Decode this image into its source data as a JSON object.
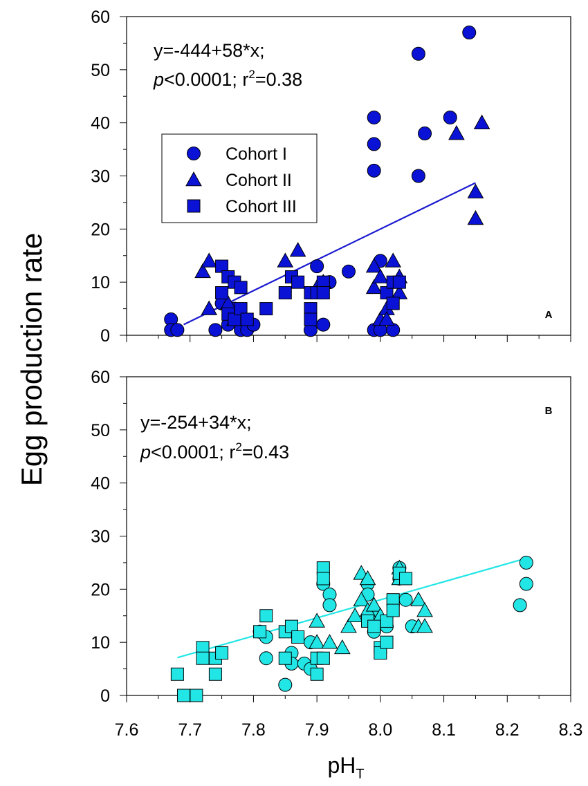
{
  "figure": {
    "ylabel": "Egg production rate",
    "xlabel_main": "pH",
    "xlabel_sub": "T",
    "colors": {
      "panel_a": "#0a12d6",
      "panel_a_line": "#1a1ad0",
      "panel_b": "#22e6e6",
      "panel_b_line": "#22e6e6",
      "stroke": "#000000"
    }
  },
  "chart_data": [
    {
      "type": "scatter",
      "panel": "A",
      "xlim": [
        7.6,
        8.3
      ],
      "ylim": [
        0,
        60
      ],
      "xticks": [
        "7.6",
        "7.7",
        "7.8",
        "7.9",
        "8.0",
        "8.1",
        "8.2",
        "8.3"
      ],
      "yticks": [
        "0",
        "10",
        "20",
        "30",
        "40",
        "50",
        "60"
      ],
      "equation": "y=-444+58*x;",
      "stats_p": "p",
      "stats_p_rest": "<0.0001; r",
      "stats_r_sup": "2",
      "stats_r_rest": "=0.38",
      "legend": {
        "placement": "upper-left",
        "entries": [
          "Cohort I",
          "Cohort II",
          "Cohort III"
        ]
      },
      "regression": {
        "intercept": -444,
        "slope": 58,
        "x_range": [
          7.69,
          8.15
        ]
      },
      "series": [
        {
          "name": "Cohort I",
          "marker": "circle",
          "points": [
            [
              7.67,
              3
            ],
            [
              7.67,
              1
            ],
            [
              7.68,
              1
            ],
            [
              7.74,
              1
            ],
            [
              7.75,
              6
            ],
            [
              7.76,
              2
            ],
            [
              7.77,
              5
            ],
            [
              7.78,
              1
            ],
            [
              7.79,
              1
            ],
            [
              7.8,
              2
            ],
            [
              7.89,
              1
            ],
            [
              7.9,
              13
            ],
            [
              7.91,
              2
            ],
            [
              7.92,
              10
            ],
            [
              7.95,
              12
            ],
            [
              7.99,
              41
            ],
            [
              7.99,
              36
            ],
            [
              7.99,
              31
            ],
            [
              7.99,
              1
            ],
            [
              8.0,
              14
            ],
            [
              8.0,
              1
            ],
            [
              8.02,
              1
            ],
            [
              8.06,
              53
            ],
            [
              8.06,
              30
            ],
            [
              8.07,
              38
            ],
            [
              8.11,
              41
            ],
            [
              8.14,
              57
            ]
          ]
        },
        {
          "name": "Cohort II",
          "marker": "triangle",
          "points": [
            [
              7.72,
              12
            ],
            [
              7.73,
              14
            ],
            [
              7.73,
              5
            ],
            [
              7.76,
              6
            ],
            [
              7.77,
              3
            ],
            [
              7.85,
              14
            ],
            [
              7.87,
              16
            ],
            [
              7.9,
              9
            ],
            [
              7.91,
              10
            ],
            [
              7.99,
              13
            ],
            [
              7.99,
              9
            ],
            [
              8.0,
              11
            ],
            [
              8.0,
              3
            ],
            [
              8.01,
              5
            ],
            [
              8.01,
              3
            ],
            [
              8.02,
              14
            ],
            [
              8.03,
              11
            ],
            [
              8.03,
              8
            ],
            [
              8.12,
              38
            ],
            [
              8.15,
              27
            ],
            [
              8.15,
              22
            ],
            [
              8.16,
              40
            ]
          ]
        },
        {
          "name": "Cohort III",
          "marker": "square",
          "points": [
            [
              7.75,
              13
            ],
            [
              7.75,
              8
            ],
            [
              7.76,
              11
            ],
            [
              7.76,
              4
            ],
            [
              7.77,
              10
            ],
            [
              7.77,
              3
            ],
            [
              7.78,
              9
            ],
            [
              7.78,
              5
            ],
            [
              7.79,
              3
            ],
            [
              7.82,
              5
            ],
            [
              7.85,
              8
            ],
            [
              7.86,
              11
            ],
            [
              7.87,
              10
            ],
            [
              7.89,
              8
            ],
            [
              7.89,
              5
            ],
            [
              7.89,
              3
            ],
            [
              7.9,
              8
            ],
            [
              7.91,
              10
            ],
            [
              7.91,
              8
            ],
            [
              8.01,
              8
            ],
            [
              8.02,
              10
            ],
            [
              8.02,
              6
            ],
            [
              8.03,
              10
            ]
          ]
        }
      ]
    },
    {
      "type": "scatter",
      "panel": "B",
      "xlim": [
        7.6,
        8.3
      ],
      "ylim": [
        0,
        60
      ],
      "xticks": [
        "7.6",
        "7.7",
        "7.8",
        "7.9",
        "8.0",
        "8.1",
        "8.2",
        "8.3"
      ],
      "yticks": [
        "0",
        "10",
        "20",
        "30",
        "40",
        "50",
        "60"
      ],
      "equation": "y=-254+34*x;",
      "stats_p": "p",
      "stats_p_rest": "<0.0001; r",
      "stats_r_sup": "2",
      "stats_r_rest": "=0.43",
      "regression": {
        "intercept": -254,
        "slope": 34,
        "x_range": [
          7.68,
          8.22
        ]
      },
      "series": [
        {
          "name": "Cohort I",
          "marker": "circle",
          "points": [
            [
              7.81,
              12
            ],
            [
              7.82,
              11
            ],
            [
              7.82,
              7
            ],
            [
              7.85,
              2
            ],
            [
              7.86,
              8
            ],
            [
              7.86,
              6
            ],
            [
              7.88,
              6
            ],
            [
              7.89,
              10
            ],
            [
              7.89,
              5
            ],
            [
              7.91,
              21
            ],
            [
              7.92,
              19
            ],
            [
              7.92,
              17
            ],
            [
              7.98,
              21
            ],
            [
              7.98,
              19
            ],
            [
              7.99,
              15
            ],
            [
              7.99,
              12
            ],
            [
              8.01,
              13
            ],
            [
              8.03,
              24
            ],
            [
              8.03,
              22
            ],
            [
              8.04,
              18
            ],
            [
              8.05,
              13
            ],
            [
              8.22,
              17
            ],
            [
              8.23,
              25
            ],
            [
              8.23,
              21
            ]
          ]
        },
        {
          "name": "Cohort II",
          "marker": "triangle",
          "points": [
            [
              7.9,
              14
            ],
            [
              7.9,
              10
            ],
            [
              7.92,
              10
            ],
            [
              7.94,
              9
            ],
            [
              7.95,
              13
            ],
            [
              7.96,
              15
            ],
            [
              7.97,
              23
            ],
            [
              7.97,
              18
            ],
            [
              7.98,
              22
            ],
            [
              7.98,
              16
            ],
            [
              7.99,
              17
            ],
            [
              8.0,
              15
            ],
            [
              8.03,
              24
            ],
            [
              8.03,
              22
            ],
            [
              8.06,
              18
            ],
            [
              8.06,
              13
            ],
            [
              8.07,
              16
            ],
            [
              8.07,
              13
            ]
          ]
        },
        {
          "name": "Cohort III",
          "marker": "square",
          "points": [
            [
              7.68,
              4
            ],
            [
              7.69,
              0
            ],
            [
              7.71,
              0
            ],
            [
              7.72,
              9
            ],
            [
              7.72,
              7
            ],
            [
              7.74,
              7
            ],
            [
              7.74,
              4
            ],
            [
              7.75,
              8
            ],
            [
              7.81,
              12
            ],
            [
              7.82,
              15
            ],
            [
              7.85,
              12
            ],
            [
              7.85,
              7
            ],
            [
              7.86,
              13
            ],
            [
              7.87,
              11
            ],
            [
              7.9,
              7
            ],
            [
              7.9,
              4
            ],
            [
              7.91,
              24
            ],
            [
              7.91,
              22
            ],
            [
              7.91,
              7
            ],
            [
              7.98,
              14
            ],
            [
              7.99,
              13
            ],
            [
              8.0,
              9
            ],
            [
              8.0,
              8
            ],
            [
              8.01,
              14
            ],
            [
              8.01,
              10
            ],
            [
              8.02,
              18
            ],
            [
              8.02,
              16
            ],
            [
              8.03,
              23
            ],
            [
              8.04,
              22
            ]
          ]
        }
      ]
    }
  ]
}
